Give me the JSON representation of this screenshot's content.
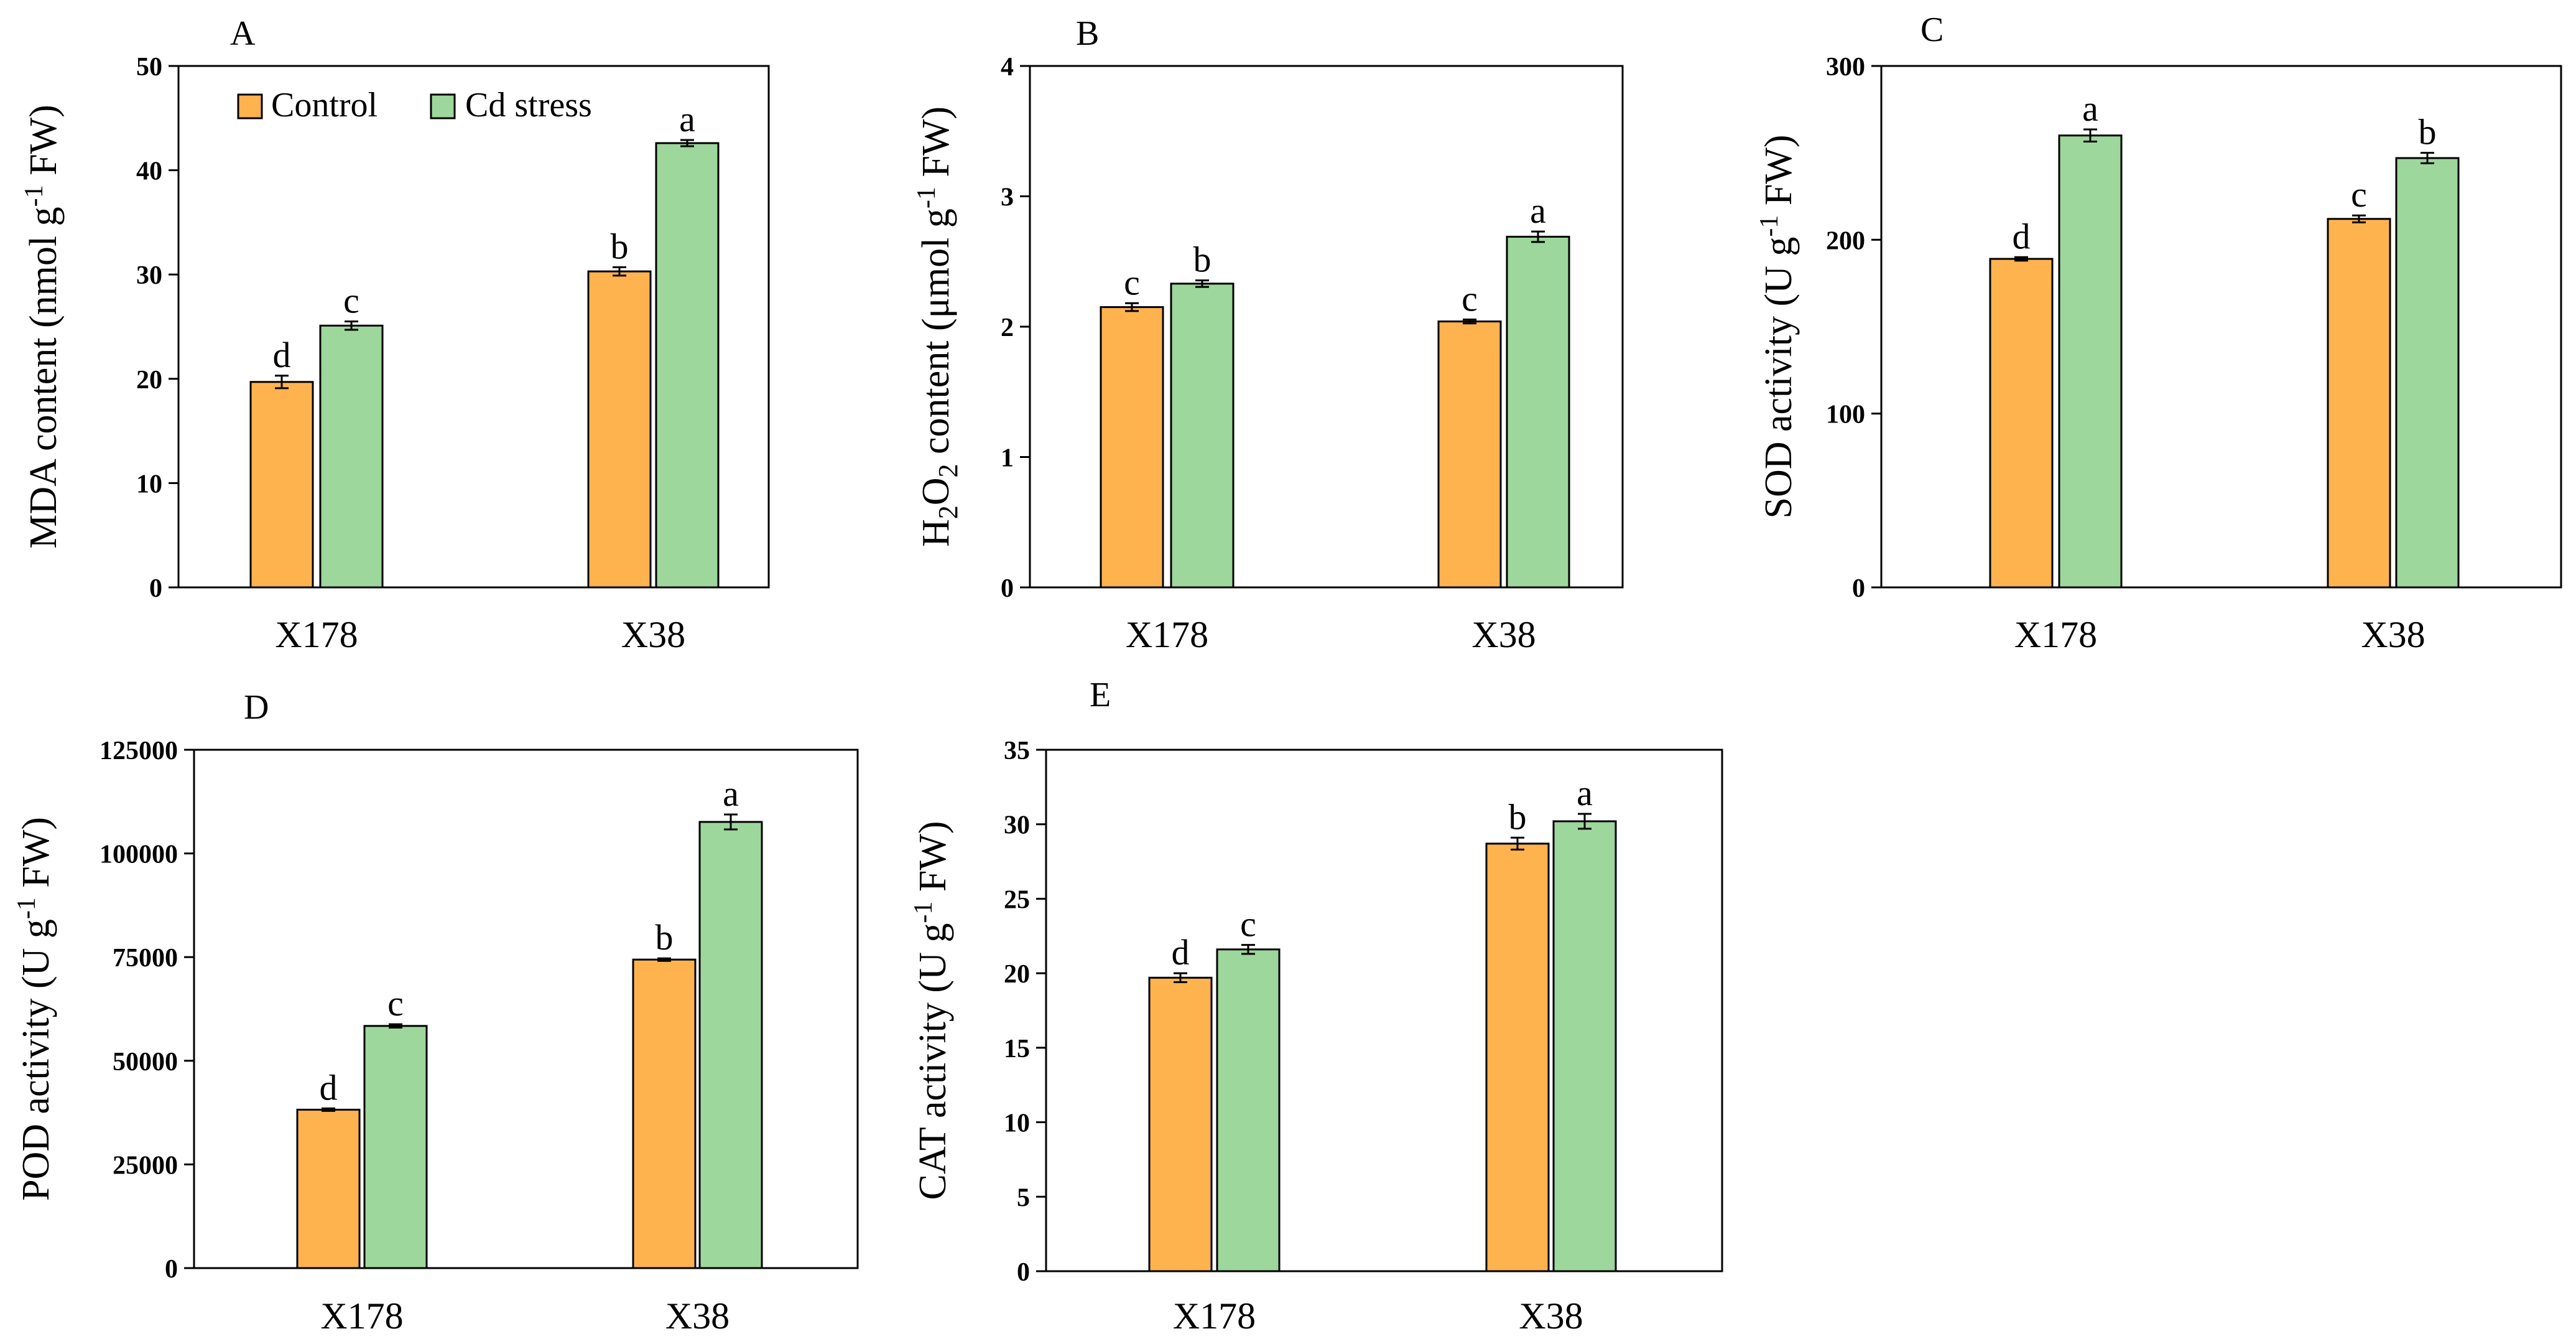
{
  "colors": {
    "control": "#FFB34F",
    "cd": "#9DD79B",
    "stroke": "#000000"
  },
  "legend": {
    "control": "Control",
    "cd": "Cd stress"
  },
  "chart_data": [
    {
      "type": "bar",
      "panel": "A",
      "ylabel_main": "MDA content (nmol g",
      "ylabel_sup": "-1",
      "ylabel_tail": " FW)",
      "categories": [
        "X178",
        "X38"
      ],
      "ylim": [
        0,
        50
      ],
      "yticks": [
        0,
        10,
        20,
        30,
        40,
        50
      ],
      "series": [
        {
          "name": "Control",
          "values": [
            19.7,
            30.3
          ],
          "errors": [
            0.6,
            0.4
          ],
          "letters": [
            "d",
            "b"
          ]
        },
        {
          "name": "Cd stress",
          "values": [
            25.1,
            42.6
          ],
          "errors": [
            0.4,
            0.3
          ],
          "letters": [
            "c",
            "a"
          ]
        }
      ],
      "legend_position": "top-left"
    },
    {
      "type": "bar",
      "panel": "B",
      "ylabel_main": "H",
      "ylabel_sub": "2",
      "ylabel_mid": "O",
      "ylabel_sub2": "2",
      "ylabel_mid2": " content (μmol g",
      "ylabel_sup": "-1",
      "ylabel_tail": " FW)",
      "categories": [
        "X178",
        "X38"
      ],
      "ylim": [
        0,
        4
      ],
      "yticks": [
        0,
        1,
        2,
        3,
        4
      ],
      "series": [
        {
          "name": "Control",
          "values": [
            2.15,
            2.04
          ],
          "errors": [
            0.03,
            0.015
          ],
          "letters": [
            "c",
            "c"
          ]
        },
        {
          "name": "Cd stress",
          "values": [
            2.33,
            2.69
          ],
          "errors": [
            0.025,
            0.04
          ],
          "letters": [
            "b",
            "a"
          ]
        }
      ]
    },
    {
      "type": "bar",
      "panel": "C",
      "ylabel_main": "SOD activity (U g",
      "ylabel_sup": "-1",
      "ylabel_tail": " FW)",
      "categories": [
        "X178",
        "X38"
      ],
      "ylim": [
        0,
        300
      ],
      "yticks": [
        0,
        100,
        200,
        300
      ],
      "series": [
        {
          "name": "Control",
          "values": [
            189,
            212
          ],
          "errors": [
            1.0,
            2.0
          ],
          "letters": [
            "d",
            "c"
          ]
        },
        {
          "name": "Cd stress",
          "values": [
            260,
            247
          ],
          "errors": [
            3.5,
            3.0
          ],
          "letters": [
            "a",
            "b"
          ]
        }
      ]
    },
    {
      "type": "bar",
      "panel": "D",
      "ylabel_main": "POD activity (U g",
      "ylabel_sup": "-1",
      "ylabel_tail": " FW)",
      "categories": [
        "X178",
        "X38"
      ],
      "ylim": [
        0,
        125000
      ],
      "yticks": [
        0,
        25000,
        50000,
        75000,
        100000,
        125000
      ],
      "series": [
        {
          "name": "Control",
          "values": [
            38200,
            74400
          ],
          "errors": [
            300,
            300
          ],
          "letters": [
            "d",
            "b"
          ]
        },
        {
          "name": "Cd stress",
          "values": [
            58400,
            107600
          ],
          "errors": [
            400,
            1800
          ],
          "letters": [
            "c",
            "a"
          ]
        }
      ]
    },
    {
      "type": "bar",
      "panel": "E",
      "ylabel_main": "CAT activity (U g",
      "ylabel_sup": "-1",
      "ylabel_tail": " FW)",
      "categories": [
        "X178",
        "X38"
      ],
      "ylim": [
        0,
        35
      ],
      "yticks": [
        0,
        5,
        10,
        15,
        20,
        25,
        30,
        35
      ],
      "series": [
        {
          "name": "Control",
          "values": [
            19.7,
            28.7
          ],
          "errors": [
            0.3,
            0.4
          ],
          "letters": [
            "d",
            "b"
          ]
        },
        {
          "name": "Cd stress",
          "values": [
            21.6,
            30.2
          ],
          "errors": [
            0.3,
            0.5
          ],
          "letters": [
            "c",
            "a"
          ]
        }
      ]
    }
  ]
}
